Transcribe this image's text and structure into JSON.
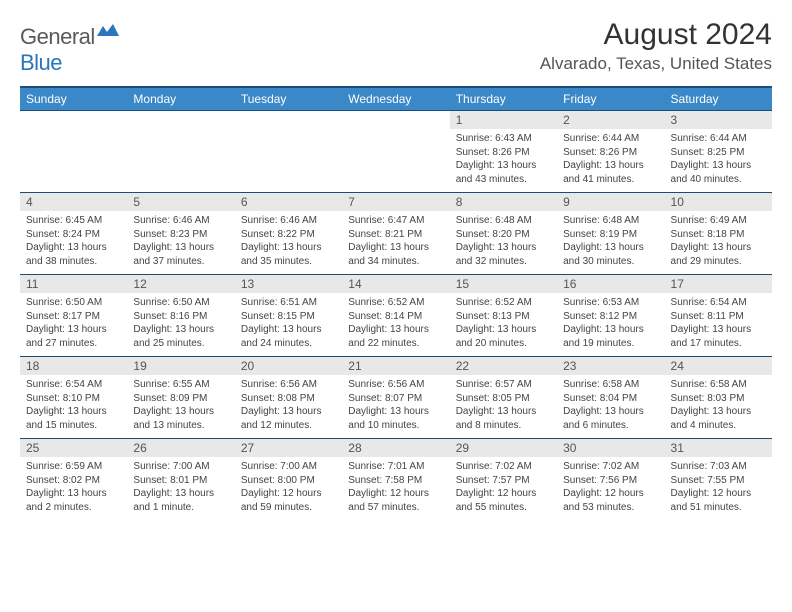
{
  "branding": {
    "logo_part1": "General",
    "logo_part2": "Blue",
    "logo_color_primary": "#5a5a5a",
    "logo_color_accent": "#2a75bb"
  },
  "header": {
    "month_title": "August 2024",
    "location": "Alvarado, Texas, United States"
  },
  "theme": {
    "header_bg": "#3b88c8",
    "header_border": "#1a4d7a",
    "date_band_bg": "#e8e8e8",
    "text_color": "#333333"
  },
  "calendar": {
    "day_names": [
      "Sunday",
      "Monday",
      "Tuesday",
      "Wednesday",
      "Thursday",
      "Friday",
      "Saturday"
    ],
    "weeks": [
      [
        null,
        null,
        null,
        null,
        {
          "date": "1",
          "sunrise": "6:43 AM",
          "sunset": "8:26 PM",
          "daylight": "13 hours and 43 minutes."
        },
        {
          "date": "2",
          "sunrise": "6:44 AM",
          "sunset": "8:26 PM",
          "daylight": "13 hours and 41 minutes."
        },
        {
          "date": "3",
          "sunrise": "6:44 AM",
          "sunset": "8:25 PM",
          "daylight": "13 hours and 40 minutes."
        }
      ],
      [
        {
          "date": "4",
          "sunrise": "6:45 AM",
          "sunset": "8:24 PM",
          "daylight": "13 hours and 38 minutes."
        },
        {
          "date": "5",
          "sunrise": "6:46 AM",
          "sunset": "8:23 PM",
          "daylight": "13 hours and 37 minutes."
        },
        {
          "date": "6",
          "sunrise": "6:46 AM",
          "sunset": "8:22 PM",
          "daylight": "13 hours and 35 minutes."
        },
        {
          "date": "7",
          "sunrise": "6:47 AM",
          "sunset": "8:21 PM",
          "daylight": "13 hours and 34 minutes."
        },
        {
          "date": "8",
          "sunrise": "6:48 AM",
          "sunset": "8:20 PM",
          "daylight": "13 hours and 32 minutes."
        },
        {
          "date": "9",
          "sunrise": "6:48 AM",
          "sunset": "8:19 PM",
          "daylight": "13 hours and 30 minutes."
        },
        {
          "date": "10",
          "sunrise": "6:49 AM",
          "sunset": "8:18 PM",
          "daylight": "13 hours and 29 minutes."
        }
      ],
      [
        {
          "date": "11",
          "sunrise": "6:50 AM",
          "sunset": "8:17 PM",
          "daylight": "13 hours and 27 minutes."
        },
        {
          "date": "12",
          "sunrise": "6:50 AM",
          "sunset": "8:16 PM",
          "daylight": "13 hours and 25 minutes."
        },
        {
          "date": "13",
          "sunrise": "6:51 AM",
          "sunset": "8:15 PM",
          "daylight": "13 hours and 24 minutes."
        },
        {
          "date": "14",
          "sunrise": "6:52 AM",
          "sunset": "8:14 PM",
          "daylight": "13 hours and 22 minutes."
        },
        {
          "date": "15",
          "sunrise": "6:52 AM",
          "sunset": "8:13 PM",
          "daylight": "13 hours and 20 minutes."
        },
        {
          "date": "16",
          "sunrise": "6:53 AM",
          "sunset": "8:12 PM",
          "daylight": "13 hours and 19 minutes."
        },
        {
          "date": "17",
          "sunrise": "6:54 AM",
          "sunset": "8:11 PM",
          "daylight": "13 hours and 17 minutes."
        }
      ],
      [
        {
          "date": "18",
          "sunrise": "6:54 AM",
          "sunset": "8:10 PM",
          "daylight": "13 hours and 15 minutes."
        },
        {
          "date": "19",
          "sunrise": "6:55 AM",
          "sunset": "8:09 PM",
          "daylight": "13 hours and 13 minutes."
        },
        {
          "date": "20",
          "sunrise": "6:56 AM",
          "sunset": "8:08 PM",
          "daylight": "13 hours and 12 minutes."
        },
        {
          "date": "21",
          "sunrise": "6:56 AM",
          "sunset": "8:07 PM",
          "daylight": "13 hours and 10 minutes."
        },
        {
          "date": "22",
          "sunrise": "6:57 AM",
          "sunset": "8:05 PM",
          "daylight": "13 hours and 8 minutes."
        },
        {
          "date": "23",
          "sunrise": "6:58 AM",
          "sunset": "8:04 PM",
          "daylight": "13 hours and 6 minutes."
        },
        {
          "date": "24",
          "sunrise": "6:58 AM",
          "sunset": "8:03 PM",
          "daylight": "13 hours and 4 minutes."
        }
      ],
      [
        {
          "date": "25",
          "sunrise": "6:59 AM",
          "sunset": "8:02 PM",
          "daylight": "13 hours and 2 minutes."
        },
        {
          "date": "26",
          "sunrise": "7:00 AM",
          "sunset": "8:01 PM",
          "daylight": "13 hours and 1 minute."
        },
        {
          "date": "27",
          "sunrise": "7:00 AM",
          "sunset": "8:00 PM",
          "daylight": "12 hours and 59 minutes."
        },
        {
          "date": "28",
          "sunrise": "7:01 AM",
          "sunset": "7:58 PM",
          "daylight": "12 hours and 57 minutes."
        },
        {
          "date": "29",
          "sunrise": "7:02 AM",
          "sunset": "7:57 PM",
          "daylight": "12 hours and 55 minutes."
        },
        {
          "date": "30",
          "sunrise": "7:02 AM",
          "sunset": "7:56 PM",
          "daylight": "12 hours and 53 minutes."
        },
        {
          "date": "31",
          "sunrise": "7:03 AM",
          "sunset": "7:55 PM",
          "daylight": "12 hours and 51 minutes."
        }
      ]
    ],
    "labels": {
      "sunrise_prefix": "Sunrise: ",
      "sunset_prefix": "Sunset: ",
      "daylight_prefix": "Daylight: "
    }
  }
}
